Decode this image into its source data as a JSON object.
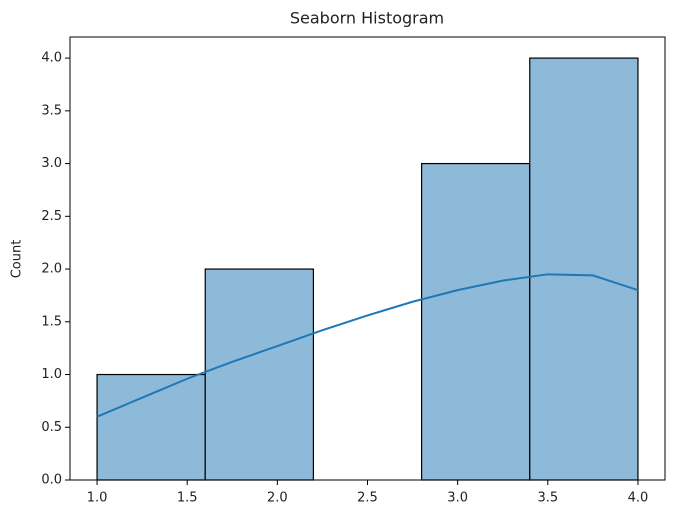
{
  "chart_data": {
    "type": "histogram",
    "title": "Seaborn Histogram",
    "y_label": "Count",
    "bins": [
      1.0,
      1.6,
      2.2,
      2.8,
      3.4,
      4.0
    ],
    "values": [
      1,
      2,
      0,
      3,
      4
    ],
    "color": "#8ebad9",
    "edgecolor": "#000000",
    "kde": {
      "x": [
        1.0,
        1.25,
        1.5,
        1.75,
        2.0,
        2.25,
        2.5,
        2.75,
        3.0,
        3.25,
        3.5,
        3.75,
        4.0
      ],
      "values": [
        0.6,
        0.78,
        0.96,
        1.12,
        1.27,
        1.42,
        1.56,
        1.69,
        1.8,
        1.89,
        1.95,
        1.94,
        1.8
      ],
      "color": "#1f77b4"
    },
    "xlim": [
      0.85,
      4.15
    ],
    "ylim": [
      0,
      4.2
    ],
    "xticks": [
      {
        "value": 1.0,
        "label": "1.0"
      },
      1.5,
      {
        "value": 2.0,
        "label": "2.0"
      },
      2.5,
      {
        "value": 3.0,
        "label": "3.0"
      },
      3.5,
      {
        "value": 4.0,
        "label": "4.0"
      }
    ],
    "yticks": [
      {
        "value": 0,
        "label": "0.0"
      },
      0.5,
      {
        "value": 1,
        "label": "1.0"
      },
      1.5,
      {
        "value": 2,
        "label": "2.0"
      },
      2.5,
      {
        "value": 3,
        "label": "3.0"
      },
      3.5,
      {
        "value": 4,
        "label": "4.0"
      }
    ]
  }
}
